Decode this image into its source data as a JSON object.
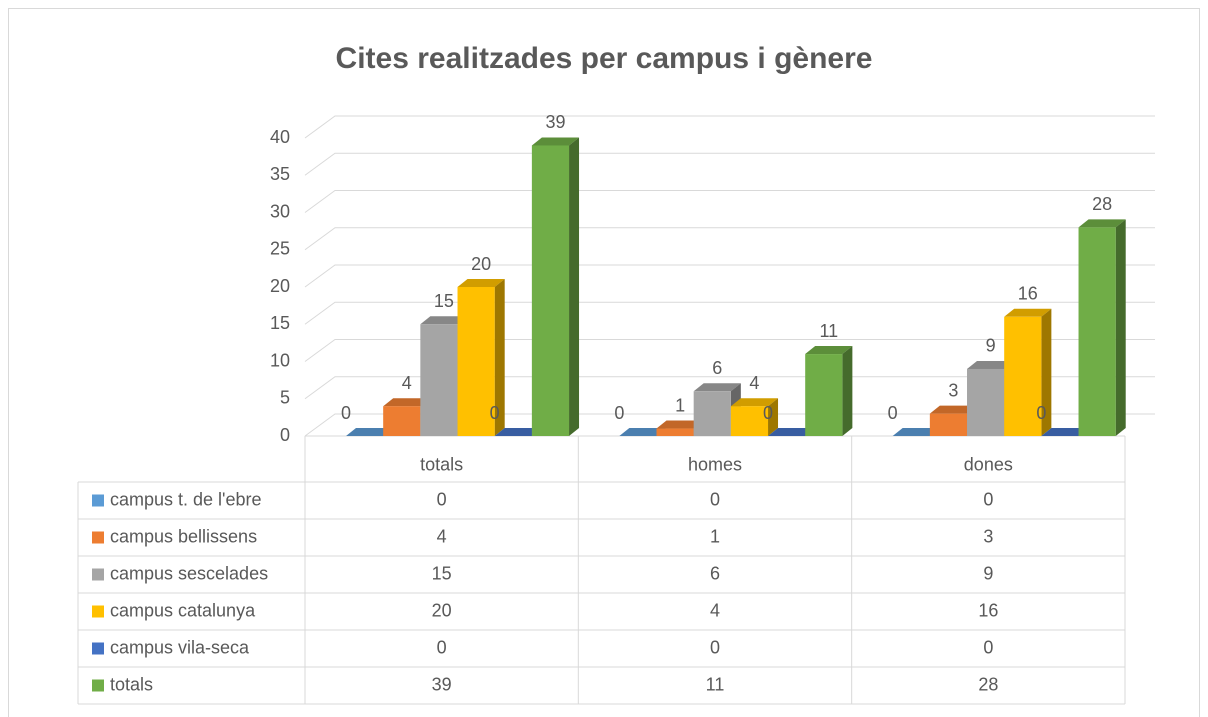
{
  "chart_data": {
    "type": "bar3d",
    "title": "Cites realitzades per campus i gènere",
    "categories": [
      "totals",
      "homes",
      "dones"
    ],
    "series": [
      {
        "name": "campus t. de l'ebre",
        "color": "#5B9BD5",
        "values": [
          0,
          0,
          0
        ]
      },
      {
        "name": "campus bellissens",
        "color": "#ED7D31",
        "values": [
          4,
          1,
          3
        ]
      },
      {
        "name": "campus sescelades",
        "color": "#A5A5A5",
        "values": [
          15,
          6,
          9
        ]
      },
      {
        "name": "campus catalunya",
        "color": "#FFC000",
        "values": [
          20,
          4,
          16
        ]
      },
      {
        "name": "campus vila-seca",
        "color": "#4472C4",
        "values": [
          0,
          0,
          0
        ]
      },
      {
        "name": "totals",
        "color": "#70AD47",
        "values": [
          39,
          11,
          28
        ]
      }
    ],
    "ylim": [
      0,
      40
    ],
    "yticks": [
      0,
      5,
      10,
      15,
      20,
      25,
      30,
      35,
      40
    ],
    "grid": true,
    "data_table": true
  }
}
